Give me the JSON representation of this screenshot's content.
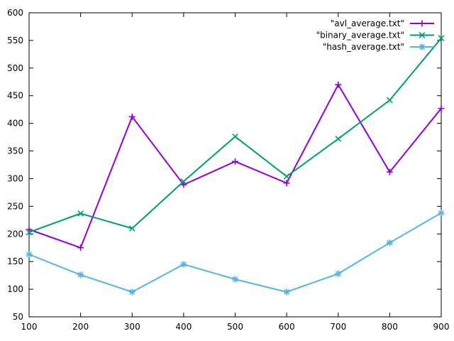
{
  "chart_data": {
    "type": "line",
    "x": [
      100,
      200,
      300,
      400,
      500,
      600,
      700,
      800,
      900
    ],
    "xlim": [
      100,
      900
    ],
    "ylim": [
      50,
      600
    ],
    "xticks": [
      "100",
      "200",
      "300",
      "400",
      "500",
      "600",
      "700",
      "800",
      "900"
    ],
    "yticks": [
      "50",
      "100",
      "150",
      "200",
      "250",
      "300",
      "350",
      "400",
      "450",
      "500",
      "550",
      "600"
    ],
    "grid": false,
    "legend_position": "top-right",
    "series": [
      {
        "name": "\"avl_average.txt\"",
        "color": "#9400d3",
        "marker": "plus",
        "values": [
          208,
          175,
          412,
          289,
          331,
          292,
          470,
          312,
          427
        ]
      },
      {
        "name": "\"binary_average.txt\"",
        "color": "#009e73",
        "marker": "cross",
        "values": [
          203,
          237,
          210,
          295,
          376,
          304,
          372,
          442,
          554
        ]
      },
      {
        "name": "\"hash_average.txt\"",
        "color": "#56b4e9",
        "marker": "star",
        "values": [
          163,
          126,
          95,
          145,
          118,
          95,
          128,
          184,
          238
        ]
      }
    ]
  }
}
